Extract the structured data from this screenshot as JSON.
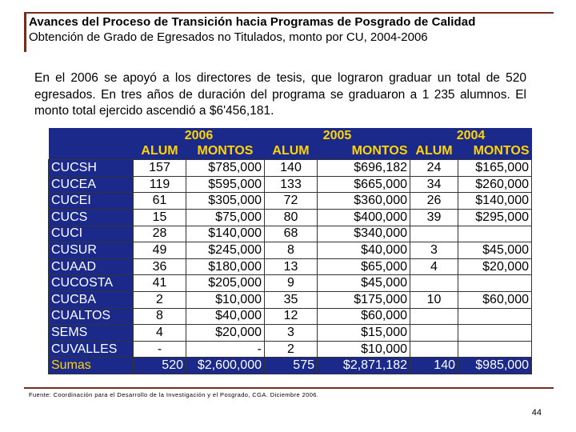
{
  "header": {
    "title": "Avances del Proceso de Transición hacia Programas de Posgrado de Calidad",
    "subtitle": "Obtención de Grado de Egresados no Titulados, monto por CU, 2004-2006"
  },
  "paragraph": "En el 2006 se apoyó a los directores de tesis, que lograron graduar un total de 520 egresados. En tres años de duración del programa se graduaron a 1 235 alumnos. El monto total ejercido ascendió a $6'456,181.",
  "table": {
    "years": [
      "2006",
      "2005",
      "2004"
    ],
    "col_headers": [
      "ALUM",
      "MONTOS",
      "ALUM",
      "MONTOS",
      "ALUM",
      "MONTOS"
    ],
    "rows": [
      {
        "cu": "CUCSH",
        "cells": [
          "157",
          "$785,000",
          "140",
          "$696,182",
          "24",
          "$165,000"
        ]
      },
      {
        "cu": "CUCEA",
        "cells": [
          "119",
          "$595,000",
          "133",
          "$665,000",
          "34",
          "$260,000"
        ]
      },
      {
        "cu": "CUCEI",
        "cells": [
          "61",
          "$305,000",
          "72",
          "$360,000",
          "26",
          "$140,000"
        ]
      },
      {
        "cu": "CUCS",
        "cells": [
          "15",
          "$75,000",
          "80",
          "$400,000",
          "39",
          "$295,000"
        ]
      },
      {
        "cu": "CUCI",
        "cells": [
          "28",
          "$140,000",
          "68",
          "$340,000",
          "",
          ""
        ]
      },
      {
        "cu": "CUSUR",
        "cells": [
          "49",
          "$245,000",
          "8",
          "$40,000",
          "3",
          "$45,000"
        ]
      },
      {
        "cu": "CUAAD",
        "cells": [
          "36",
          "$180,000",
          "13",
          "$65,000",
          "4",
          "$20,000"
        ]
      },
      {
        "cu": "CUCOSTA",
        "cells": [
          "41",
          "$205,000",
          "9",
          "$45,000",
          "",
          ""
        ]
      },
      {
        "cu": "CUCBA",
        "cells": [
          "2",
          "$10,000",
          "35",
          "$175,000",
          "10",
          "$60,000"
        ]
      },
      {
        "cu": "CUALTOS",
        "cells": [
          "8",
          "$40,000",
          "12",
          "$60,000",
          "",
          ""
        ]
      },
      {
        "cu": "SEMS",
        "cells": [
          "4",
          "$20,000",
          "3",
          "$15,000",
          "",
          ""
        ]
      },
      {
        "cu": "CUVALLES",
        "cells": [
          "-",
          "-",
          "2",
          "$10,000",
          "",
          ""
        ]
      }
    ],
    "totals": {
      "label": "Sumas",
      "cells": [
        "520",
        "$2,600,000",
        "575",
        "$2,871,182",
        "140",
        "$985,000"
      ]
    }
  },
  "source": "Fuente: Coordinación para el Desarrollo de la Investigación y el Posgrado, CGA. Diciembre 2006.",
  "page_number": "44"
}
